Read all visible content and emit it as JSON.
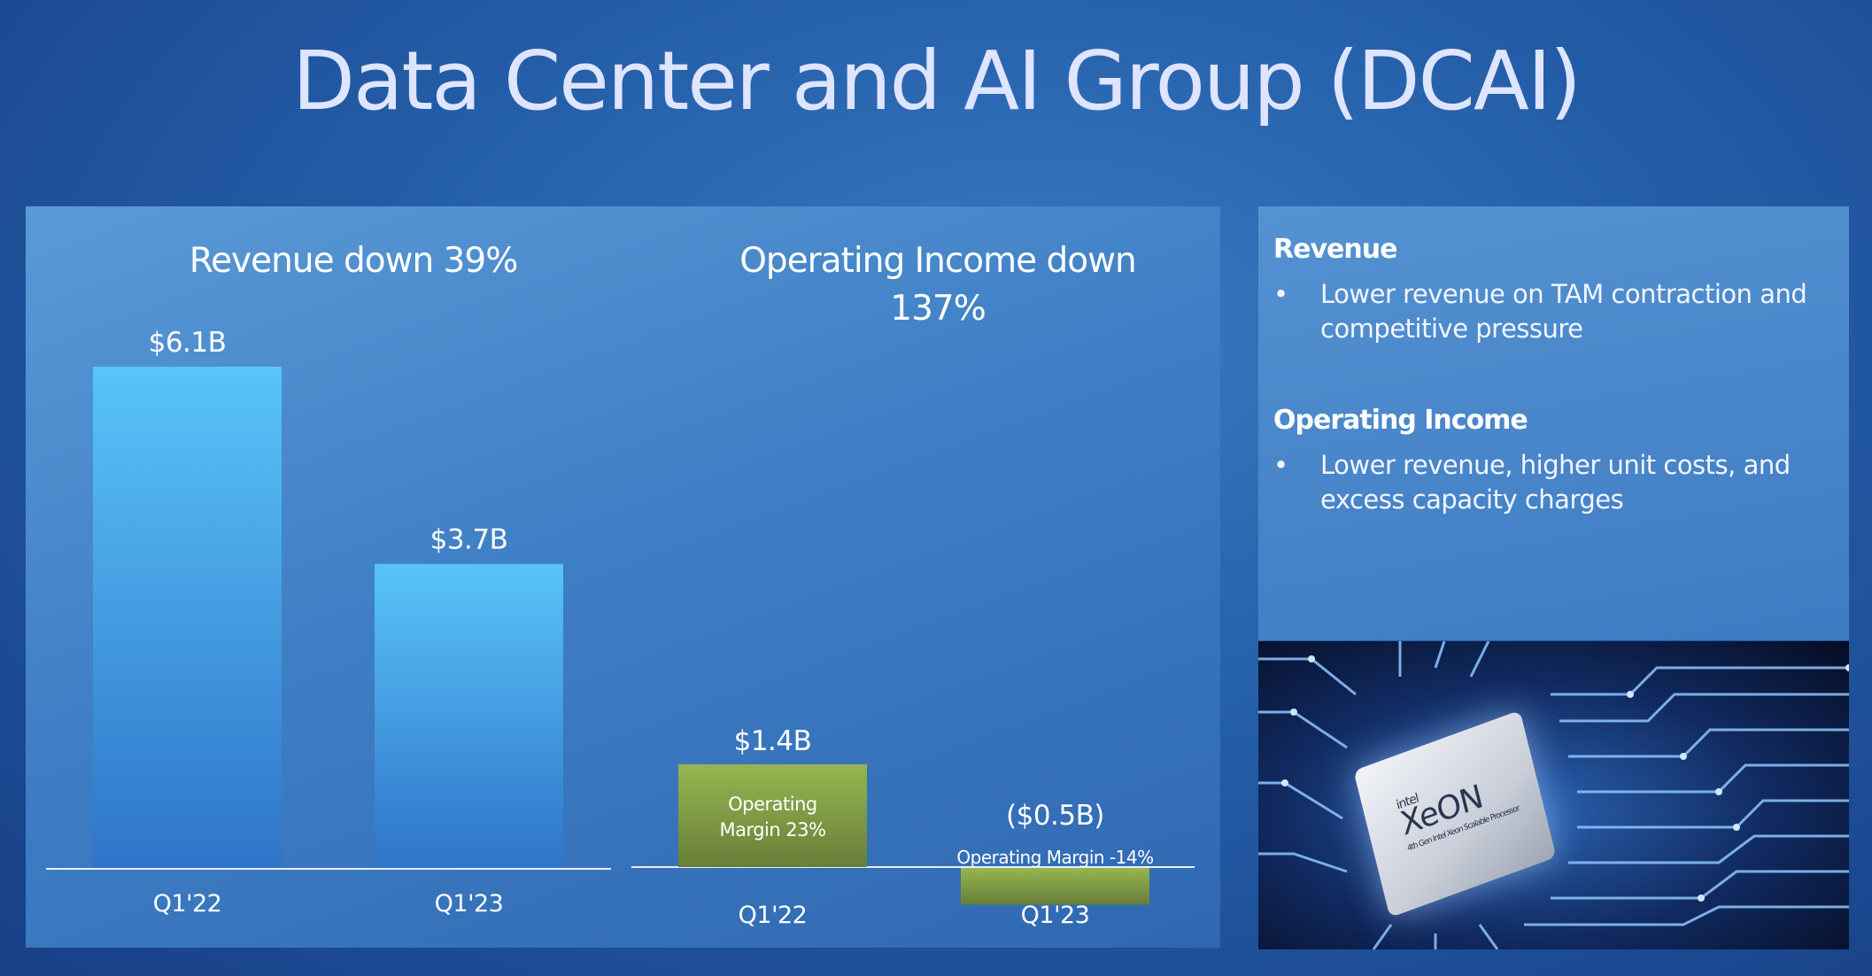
{
  "page_title": "Data Center and AI Group (DCAI)",
  "colors": {
    "revenue_bar_top": "#58c4f8",
    "revenue_bar_bottom": "#2f74c9",
    "operating_bar_top": "#97b551",
    "operating_bar_bottom": "#677f38",
    "baseline": "#e8eef8"
  },
  "chart_data": [
    {
      "type": "bar",
      "title": "Revenue down 39%",
      "categories": [
        "Q1'22",
        "Q1'23"
      ],
      "values": [
        6.1,
        3.7
      ],
      "value_labels": [
        "$6.1B",
        "$3.7B"
      ],
      "unit": "$B",
      "ylim": [
        0,
        6.1
      ],
      "grid": false
    },
    {
      "type": "bar",
      "title": "Operating Income down 137%",
      "categories": [
        "Q1'22",
        "Q1'23"
      ],
      "values": [
        1.4,
        -0.5
      ],
      "value_labels": [
        "$1.4B",
        "($0.5B)"
      ],
      "annotations": [
        "Operating Margin 23%",
        "Operating Margin -14%"
      ],
      "unit": "$B",
      "grid": false
    }
  ],
  "info": {
    "revenue_heading": "Revenue",
    "revenue_bullet": "Lower revenue on TAM contraction and competitive pressure",
    "opinc_heading": "Operating Income",
    "opinc_bullet": "Lower revenue, higher unit costs, and excess capacity charges",
    "bullet_symbol": "•"
  },
  "product_image": {
    "brand": "intel",
    "name": "XeON",
    "subtitle": "4th Gen Intel Xeon Scalable Processor"
  }
}
